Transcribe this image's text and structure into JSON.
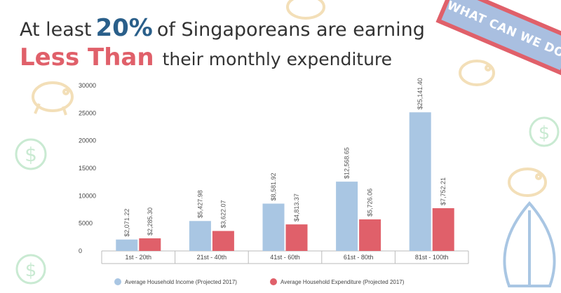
{
  "headline": {
    "line1_prefix": "At least",
    "line1_highlight": "20%",
    "line1_suffix": "of Singaporeans are earning",
    "line2_highlight": "Less Than",
    "line2_suffix": "their monthly expenditure"
  },
  "banner": {
    "text": "WHAT CAN WE DO?"
  },
  "colors": {
    "income": "#a9c6e3",
    "expenditure": "#e0606a",
    "highlight_blue": "#2a5f8a",
    "highlight_red": "#e0606a",
    "decoration": "#f3dfb8"
  },
  "icons": [
    "piggy-bank-icon",
    "dollar-coin-icon",
    "leaf-icon"
  ],
  "chart_data": {
    "type": "bar",
    "categories": [
      "1st - 20th",
      "21st - 40th",
      "41st - 60th",
      "61st - 80th",
      "81st - 100th"
    ],
    "series": [
      {
        "name": "Average Household Income (Projected 2017)",
        "values": [
          2071.22,
          5427.98,
          8581.92,
          12568.65,
          25141.4
        ],
        "labels": [
          "$2,071.22",
          "$5,427.98",
          "$8,581.92",
          "$12,568.65",
          "$25,141.40"
        ]
      },
      {
        "name": "Average Household Expenditure (Projected 2017)",
        "values": [
          2285.3,
          3622.07,
          4813.37,
          5726.06,
          7752.21
        ],
        "labels": [
          "$2,285.30",
          "$3,622.07",
          "$4,813.37",
          "$5,726.06",
          "$7,752.21"
        ]
      }
    ],
    "yticks": [
      "30000",
      "25000",
      "20000",
      "15000",
      "10000",
      "5000",
      "0"
    ],
    "ylim": [
      0,
      30000
    ],
    "legend_position": "bottom",
    "grid": false
  }
}
